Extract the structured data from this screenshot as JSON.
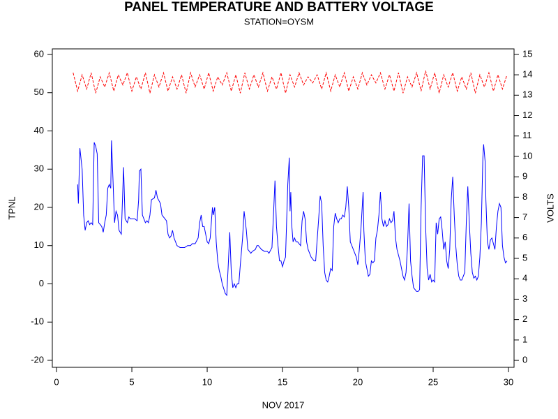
{
  "chart_data": {
    "type": "line",
    "title": "PANEL TEMPERATURE AND BATTERY VOLTAGE",
    "subtitle": "STATION=OYSM",
    "x_label": "NOV 2017",
    "y_label": "TPNL",
    "y2_label": "VOLTS",
    "xlim": [
      -0.28,
      30.37
    ],
    "xticks": [
      0,
      5,
      10,
      15,
      20,
      25,
      30
    ],
    "ylim": [
      -21.83,
      61.46
    ],
    "yticks": [
      -20,
      -10,
      0,
      10,
      20,
      30,
      40,
      50,
      60
    ],
    "y2lim": [
      -0.34,
      15.27
    ],
    "y2ticks": [
      0,
      1,
      2,
      3,
      4,
      5,
      6,
      7,
      8,
      9,
      10,
      11,
      12,
      13,
      14,
      15
    ],
    "series": [
      {
        "name": "TPNL",
        "color": "#0000ff",
        "x": [
          1.4,
          1.45,
          1.55,
          1.7,
          1.8,
          1.9,
          2.0,
          2.1,
          2.2,
          2.3,
          2.4,
          2.5,
          2.6,
          2.7,
          2.8,
          2.9,
          3.0,
          3.1,
          3.2,
          3.3,
          3.4,
          3.5,
          3.6,
          3.65,
          3.75,
          3.85,
          3.95,
          4.05,
          4.15,
          4.3,
          4.45,
          4.55,
          4.7,
          4.8,
          4.9,
          5.0,
          5.2,
          5.35,
          5.45,
          5.5,
          5.6,
          5.7,
          5.8,
          5.9,
          6.0,
          6.1,
          6.2,
          6.3,
          6.5,
          6.6,
          6.7,
          6.9,
          7.0,
          7.2,
          7.3,
          7.4,
          7.5,
          7.6,
          7.7,
          7.8,
          7.9,
          8.0,
          8.2,
          8.5,
          8.7,
          8.9,
          9.0,
          9.2,
          9.4,
          9.5,
          9.6,
          9.7,
          9.8,
          9.9,
          10.0,
          10.1,
          10.2,
          10.35,
          10.4,
          10.5,
          10.6,
          10.7,
          10.8,
          10.9,
          11.0,
          11.2,
          11.3,
          11.4,
          11.5,
          11.6,
          11.7,
          11.8,
          11.9,
          12.0,
          12.1,
          12.2,
          12.35,
          12.45,
          12.6,
          12.7,
          12.8,
          12.9,
          13.0,
          13.2,
          13.3,
          13.4,
          13.6,
          13.8,
          14.0,
          14.1,
          14.3,
          14.4,
          14.5,
          14.6,
          14.7,
          14.8,
          14.9,
          15.0,
          15.1,
          15.2,
          15.35,
          15.45,
          15.5,
          15.55,
          15.6,
          15.7,
          15.8,
          15.9,
          16.0,
          16.1,
          16.2,
          16.3,
          16.4,
          16.5,
          16.6,
          16.7,
          16.9,
          17.1,
          17.2,
          17.4,
          17.5,
          17.6,
          17.7,
          17.8,
          17.9,
          18.0,
          18.1,
          18.2,
          18.3,
          18.4,
          18.5,
          18.6,
          18.7,
          18.8,
          18.9,
          19.0,
          19.1,
          19.2,
          19.3,
          19.4,
          19.5,
          19.6,
          19.8,
          19.9,
          20.0,
          20.1,
          20.2,
          20.35,
          20.4,
          20.5,
          20.6,
          20.7,
          20.8,
          20.9,
          21.0,
          21.1,
          21.2,
          21.3,
          21.4,
          21.5,
          21.6,
          21.7,
          21.8,
          21.9,
          22.0,
          22.1,
          22.2,
          22.3,
          22.4,
          22.5,
          22.6,
          22.8,
          22.9,
          23.0,
          23.1,
          23.2,
          23.3,
          23.4,
          23.5,
          23.6,
          23.7,
          23.8,
          23.9,
          24.0,
          24.1,
          24.2,
          24.3,
          24.4,
          24.5,
          24.6,
          24.7,
          24.8,
          24.9,
          25.0,
          25.1,
          25.2,
          25.3,
          25.4,
          25.5,
          25.6,
          25.7,
          25.8,
          25.9,
          26.0,
          26.1,
          26.2,
          26.3,
          26.4,
          26.5,
          26.6,
          26.7,
          26.8,
          26.9,
          27.0,
          27.1,
          27.2,
          27.3,
          27.4,
          27.5,
          27.6,
          27.7,
          27.8,
          27.9,
          28.0,
          28.1,
          28.2,
          28.3,
          28.35,
          28.45,
          28.5,
          28.6,
          28.7,
          28.8,
          28.9,
          29.0,
          29.1,
          29.2,
          29.3,
          29.4,
          29.5,
          29.6,
          29.7,
          29.8,
          29.9
        ],
        "values": [
          26,
          21,
          35.5,
          30,
          18,
          14,
          16,
          16.5,
          15.5,
          16,
          15.5,
          37,
          36,
          34,
          16,
          15.5,
          15,
          13.5,
          16,
          18,
          25,
          26,
          25,
          37.5,
          27,
          16,
          19,
          18,
          14,
          13,
          30.5,
          17,
          16,
          17.5,
          17,
          17,
          17,
          16.5,
          22,
          29.5,
          30,
          18,
          17,
          16,
          16.5,
          16,
          18,
          22,
          22.5,
          24.5,
          22.5,
          21,
          18,
          17,
          16.5,
          13,
          12,
          12.5,
          14,
          12,
          11,
          10,
          9.5,
          9.5,
          10,
          10,
          10.5,
          10.5,
          12,
          16,
          18,
          15,
          15,
          13,
          11,
          10.5,
          12,
          20,
          18,
          20,
          11,
          6,
          3.5,
          2,
          0,
          -2.5,
          -3,
          5,
          13.5,
          3,
          -1,
          0,
          -1,
          0,
          0,
          5,
          12,
          19,
          14,
          9,
          8.5,
          8,
          8.5,
          9,
          10,
          10,
          9,
          8.5,
          8.5,
          8,
          9.5,
          18,
          27,
          15,
          10,
          6,
          6,
          4.5,
          6,
          7,
          26,
          33,
          19,
          24,
          16,
          11,
          12,
          11,
          11,
          10.5,
          10,
          16.5,
          19,
          17,
          11,
          9,
          7,
          6,
          6,
          17,
          23,
          21,
          10,
          3,
          1,
          0.5,
          2,
          4,
          3.5,
          15,
          18.5,
          17,
          16,
          17,
          17,
          18,
          17.5,
          20,
          25.5,
          20,
          11,
          10,
          8,
          7,
          5,
          9,
          14,
          24,
          14,
          6,
          4,
          2,
          2.5,
          6,
          5.5,
          6,
          12,
          14,
          18,
          24,
          17,
          15,
          16.5,
          15,
          15.5,
          17,
          16,
          16.5,
          19,
          12,
          9,
          6,
          4,
          2,
          1,
          3,
          10,
          21,
          6,
          2,
          -1,
          -1.5,
          -2,
          -2,
          -1.5,
          20,
          33.5,
          33.5,
          15,
          4,
          1,
          2.5,
          0.5,
          1,
          0.5,
          16,
          13,
          17,
          17.5,
          14,
          9,
          11,
          6,
          4,
          9,
          22,
          28,
          18,
          10,
          5,
          2,
          1,
          1,
          2,
          3,
          16,
          25.5,
          16,
          8,
          3,
          1.5,
          2,
          1,
          2,
          7,
          16,
          33,
          36.5,
          32,
          22,
          11,
          9,
          11.5,
          12,
          10.5,
          9,
          15,
          19,
          21,
          20,
          10,
          7,
          5.5,
          6
        ]
      },
      {
        "name": "VOLTS",
        "color": "#ff0000",
        "axis": "y2",
        "x": [
          1.1,
          1.4,
          1.7,
          2,
          2.3,
          2.6,
          2.9,
          3.2,
          3.5,
          3.8,
          4.1,
          4.4,
          4.7,
          5,
          5.3,
          5.6,
          5.9,
          6.2,
          6.5,
          6.8,
          7.1,
          7.4,
          7.7,
          8,
          8.3,
          8.6,
          8.9,
          9.2,
          9.5,
          9.8,
          10.1,
          10.4,
          10.7,
          11,
          11.3,
          11.6,
          11.9,
          12.2,
          12.5,
          12.8,
          13.1,
          13.4,
          13.7,
          14,
          14.3,
          14.6,
          14.9,
          15.2,
          15.5,
          15.8,
          16.1,
          16.4,
          16.7,
          17,
          17.3,
          17.6,
          17.9,
          18.2,
          18.5,
          18.8,
          19.1,
          19.4,
          19.7,
          20,
          20.3,
          20.6,
          20.9,
          21.2,
          21.5,
          21.8,
          22.1,
          22.4,
          22.7,
          23,
          23.3,
          23.6,
          23.9,
          24.2,
          24.5,
          24.8,
          25.1,
          25.4,
          25.7,
          26,
          26.3,
          26.6,
          26.9,
          27.2,
          27.5,
          27.8,
          28.1,
          28.4,
          28.7,
          29,
          29.3,
          29.6,
          29.9
        ],
        "values": [
          14.1,
          13.2,
          14.0,
          13.3,
          14.1,
          13.1,
          13.9,
          13.4,
          14.1,
          13.2,
          14.0,
          13.5,
          14.1,
          13.2,
          13.9,
          13.3,
          14.1,
          13.1,
          14.0,
          13.4,
          14.1,
          13.2,
          13.9,
          13.3,
          14.0,
          13.1,
          14.1,
          13.4,
          14.0,
          13.3,
          14.1,
          13.2,
          13.9,
          13.5,
          14.1,
          13.2,
          14.0,
          13.1,
          14.1,
          13.3,
          14.0,
          13.4,
          14.1,
          13.2,
          13.9,
          13.3,
          14.1,
          13.1,
          14.0,
          13.4,
          14.1,
          13.5,
          13.9,
          13.6,
          14.0,
          13.3,
          14.1,
          13.2,
          14.0,
          13.4,
          14.1,
          13.2,
          13.9,
          13.3,
          14.1,
          13.5,
          14.0,
          13.6,
          14.1,
          13.3,
          14.0,
          13.2,
          14.1,
          13.1,
          13.9,
          13.4,
          14.1,
          13.2,
          14.2,
          13.3,
          14.1,
          13.1,
          14.0,
          13.4,
          14.1,
          13.2,
          13.9,
          13.3,
          14.1,
          13.1,
          14.0,
          13.4,
          14.1,
          13.2,
          14.0,
          13.3,
          14.0
        ]
      }
    ]
  }
}
